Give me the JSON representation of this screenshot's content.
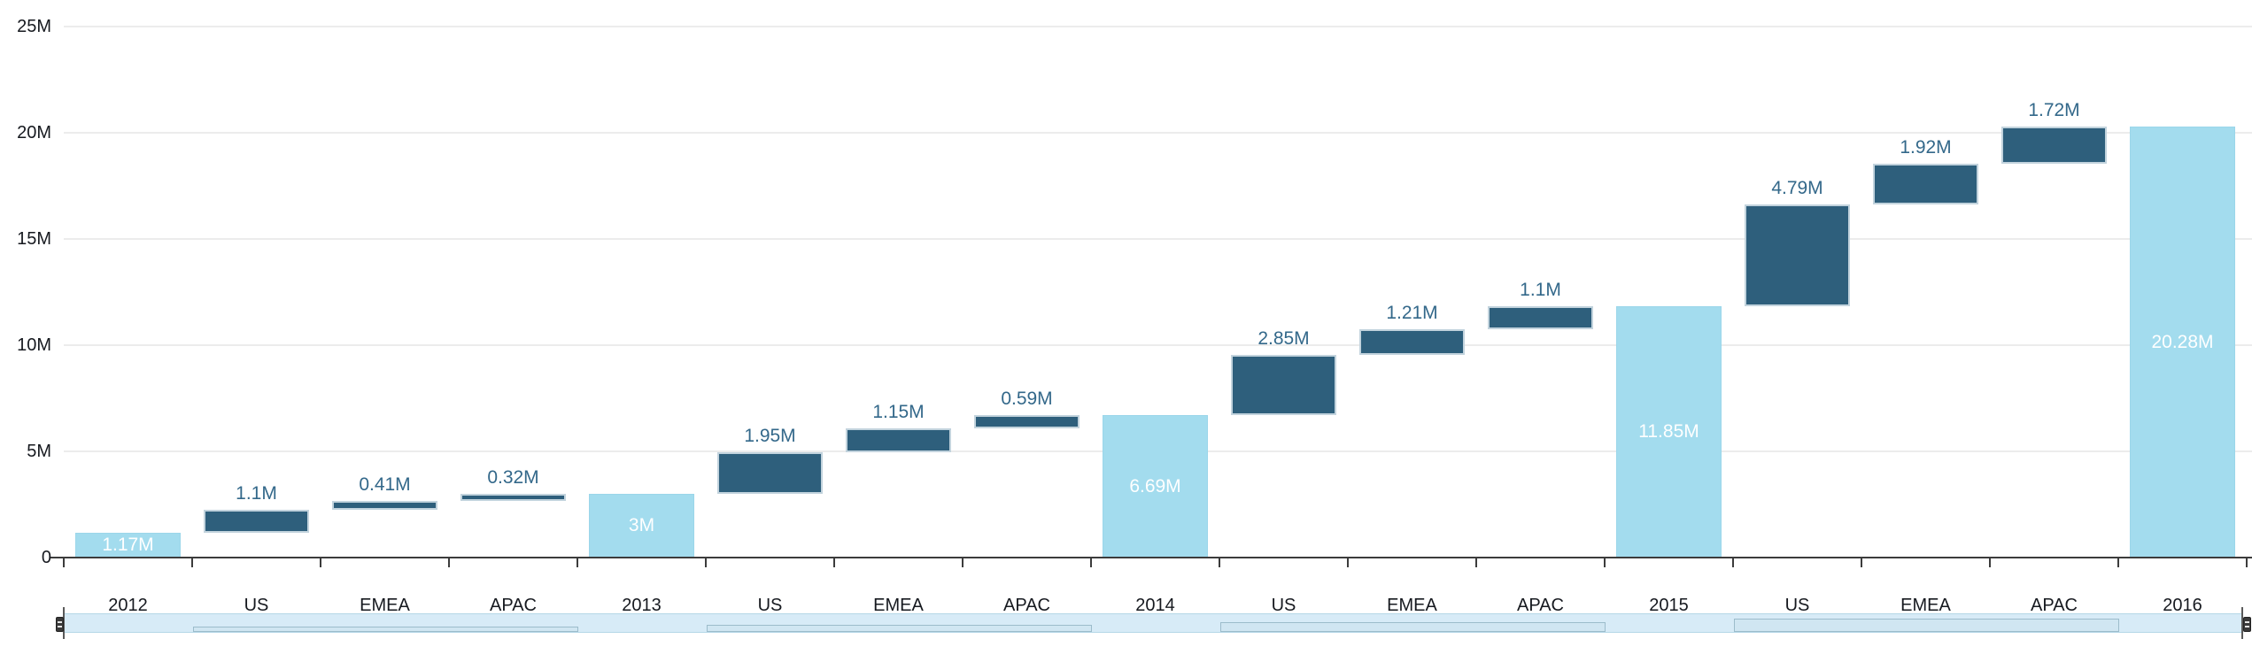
{
  "chart_data": {
    "type": "waterfall",
    "title": "",
    "xlabel": "",
    "ylabel": "",
    "grid": "horizontal",
    "legend": "none",
    "y_axis": {
      "unit": "M",
      "min": 0,
      "max": 25,
      "ticks": [
        {
          "label": "0",
          "value": 0
        },
        {
          "label": "5M",
          "value": 5
        },
        {
          "label": "10M",
          "value": 10
        },
        {
          "label": "15M",
          "value": 15
        },
        {
          "label": "20M",
          "value": 20
        },
        {
          "label": "25M",
          "value": 25
        }
      ]
    },
    "categories": [
      "2012",
      "US",
      "EMEA",
      "APAC",
      "2013",
      "US",
      "EMEA",
      "APAC",
      "2014",
      "US",
      "EMEA",
      "APAC",
      "2015",
      "US",
      "EMEA",
      "APAC",
      "2016"
    ],
    "points": [
      {
        "category": "2012",
        "kind": "total",
        "value": 1.17,
        "display": "1.17M",
        "start": 0,
        "end": 1.17
      },
      {
        "category": "US",
        "kind": "change",
        "value": 1.1,
        "display": "1.1M",
        "start": 1.17,
        "end": 2.27
      },
      {
        "category": "EMEA",
        "kind": "change",
        "value": 0.41,
        "display": "0.41M",
        "start": 2.27,
        "end": 2.68
      },
      {
        "category": "APAC",
        "kind": "change",
        "value": 0.32,
        "display": "0.32M",
        "start": 2.68,
        "end": 3
      },
      {
        "category": "2013",
        "kind": "total",
        "value": 3,
        "display": "3M",
        "start": 0,
        "end": 3
      },
      {
        "category": "US",
        "kind": "change",
        "value": 1.95,
        "display": "1.95M",
        "start": 3,
        "end": 4.95
      },
      {
        "category": "EMEA",
        "kind": "change",
        "value": 1.15,
        "display": "1.15M",
        "start": 4.95,
        "end": 6.1
      },
      {
        "category": "APAC",
        "kind": "change",
        "value": 0.59,
        "display": "0.59M",
        "start": 6.1,
        "end": 6.69
      },
      {
        "category": "2014",
        "kind": "total",
        "value": 6.69,
        "display": "6.69M",
        "start": 0,
        "end": 6.69
      },
      {
        "category": "US",
        "kind": "change",
        "value": 2.85,
        "display": "2.85M",
        "start": 6.69,
        "end": 9.54
      },
      {
        "category": "EMEA",
        "kind": "change",
        "value": 1.21,
        "display": "1.21M",
        "start": 9.54,
        "end": 10.75
      },
      {
        "category": "APAC",
        "kind": "change",
        "value": 1.1,
        "display": "1.1M",
        "start": 10.75,
        "end": 11.85
      },
      {
        "category": "2015",
        "kind": "total",
        "value": 11.85,
        "display": "11.85M",
        "start": 0,
        "end": 11.85
      },
      {
        "category": "US",
        "kind": "change",
        "value": 4.79,
        "display": "4.79M",
        "start": 11.85,
        "end": 16.64
      },
      {
        "category": "EMEA",
        "kind": "change",
        "value": 1.92,
        "display": "1.92M",
        "start": 16.64,
        "end": 18.56
      },
      {
        "category": "APAC",
        "kind": "change",
        "value": 1.72,
        "display": "1.72M",
        "start": 18.56,
        "end": 20.28
      },
      {
        "category": "2016",
        "kind": "total",
        "value": 20.28,
        "display": "20.28M",
        "start": 0,
        "end": 20.28
      }
    ],
    "colors": {
      "total_bar": "#A3DCEE",
      "change_bar": "#2E5F7C",
      "change_label": "#33688A",
      "total_label": "#FFFFFF",
      "axis_line": "#3C3C3C",
      "grid_line": "#ECECEC",
      "axis_text": "#16191F",
      "navigator_fill": "#D7EBF7",
      "navigator_border": "#B5D7E7"
    }
  }
}
